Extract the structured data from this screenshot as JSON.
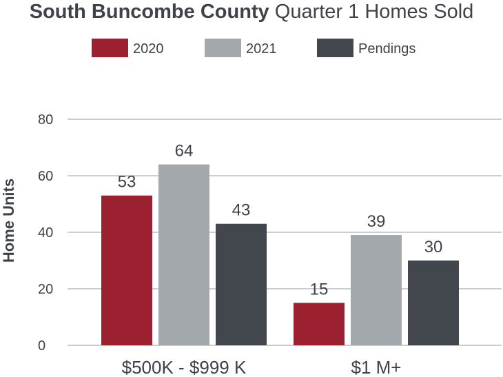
{
  "chart_data": {
    "type": "bar",
    "title_bold": "South Buncombe County",
    "title_rest": " Quarter 1 Homes Sold",
    "ylabel": "Home Units",
    "xlabel": "",
    "ylim": [
      0,
      80
    ],
    "yticks": [
      "80",
      "60",
      "40",
      "20",
      "0"
    ],
    "categories": [
      "$500K - $999 K",
      "$1 M+"
    ],
    "series": [
      {
        "name": "2020",
        "color": "#9b2030",
        "values": [
          53,
          15
        ]
      },
      {
        "name": "2021",
        "color": "#a3a8ad",
        "values": [
          64,
          39
        ]
      },
      {
        "name": "Pendings",
        "color": "#41474d",
        "values": [
          43,
          30
        ]
      }
    ],
    "grid": true,
    "legend_position": "top"
  }
}
